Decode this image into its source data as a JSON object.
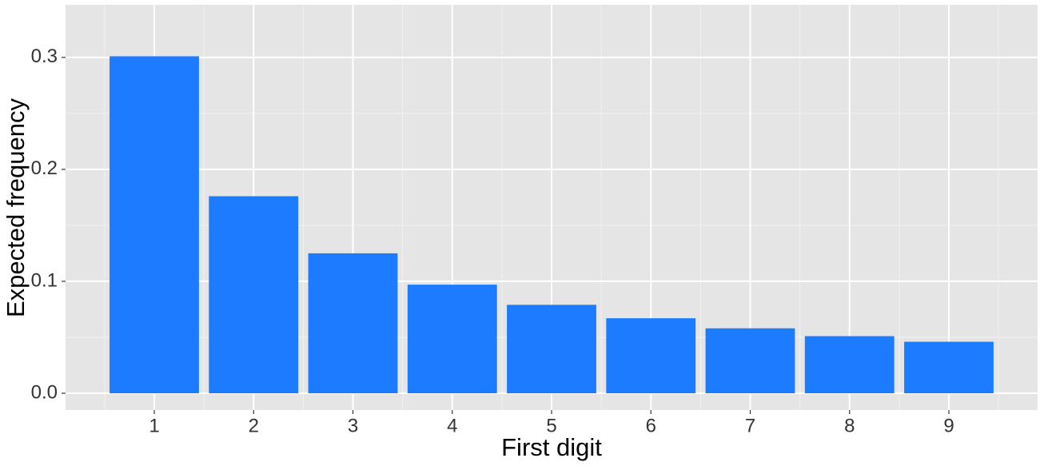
{
  "chart_data": {
    "type": "bar",
    "x_label": "First digit",
    "y_label": "Expected frequency",
    "categories": [
      "1",
      "2",
      "3",
      "4",
      "5",
      "6",
      "7",
      "8",
      "9"
    ],
    "values": [
      0.301,
      0.176,
      0.125,
      0.097,
      0.079,
      0.067,
      0.058,
      0.051,
      0.046
    ],
    "color": "#1c7bff",
    "ylim": [
      -0.015,
      0.347
    ],
    "yticks": [
      {
        "value": 0,
        "label": "0.0"
      },
      {
        "value": 0.1,
        "label": "0.1"
      },
      {
        "value": 0.2,
        "label": "0.2"
      },
      {
        "value": 0.3,
        "label": "0.3"
      }
    ],
    "grid": true
  }
}
